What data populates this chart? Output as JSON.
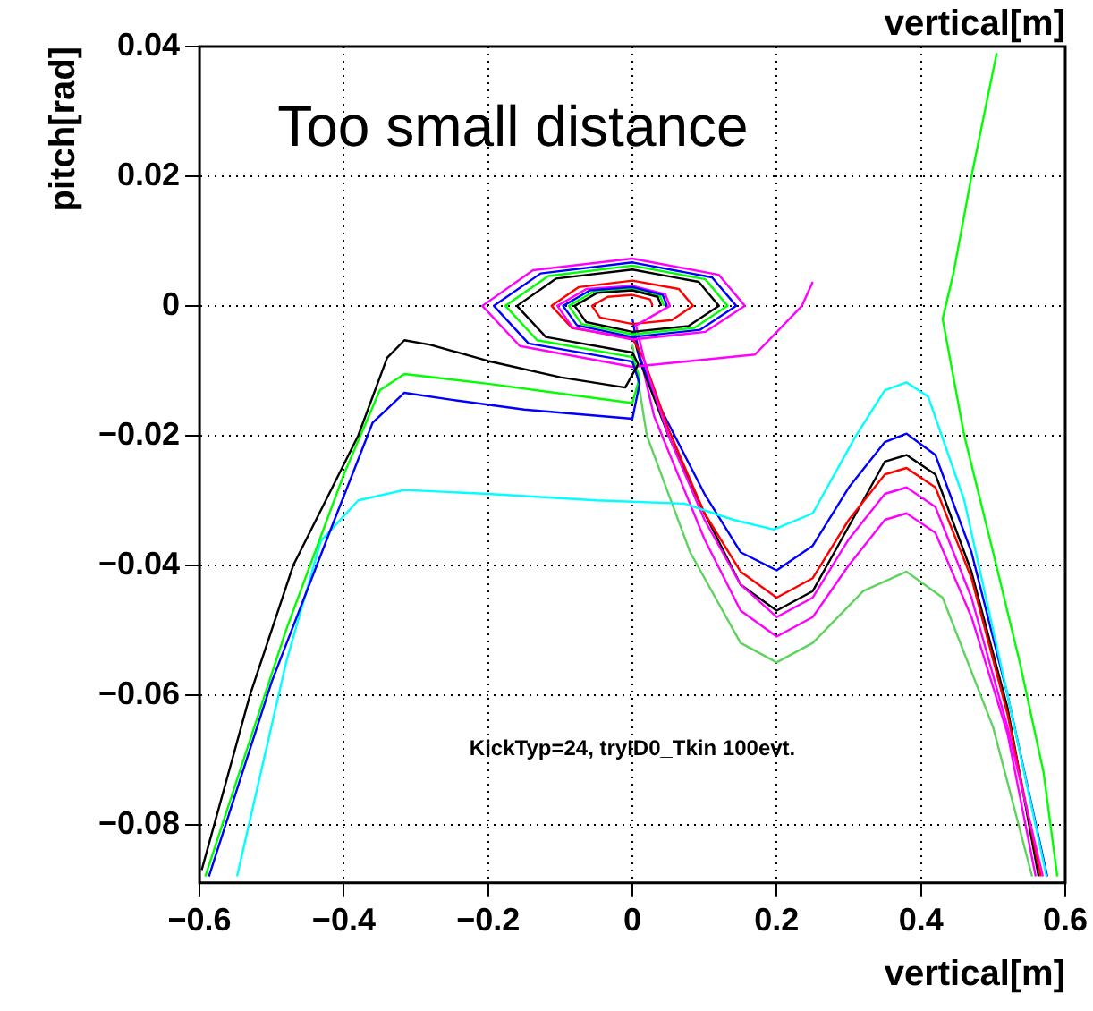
{
  "chart_data": {
    "type": "line",
    "title": "vertical[m]",
    "xlabel": "vertical[m]",
    "ylabel": "pitch[rad]",
    "annotations": [
      "Too small distance",
      "KickTyp=24, tryID0_Tkin 100evt."
    ],
    "xlim": [
      -0.6,
      0.6
    ],
    "ylim": [
      -0.089,
      0.04
    ],
    "xticks": [
      {
        "value": -0.6,
        "label": "−0.6"
      },
      {
        "value": -0.4,
        "label": "−0.4"
      },
      {
        "value": -0.2,
        "label": "−0.2"
      },
      0,
      0.2,
      0.4,
      0.6
    ],
    "yticks": [
      {
        "value": -0.08,
        "label": "−0.08"
      },
      {
        "value": -0.06,
        "label": "−0.06"
      },
      {
        "value": -0.04,
        "label": "−0.04"
      },
      {
        "value": -0.02,
        "label": "−0.02"
      },
      0,
      0.02,
      0.04
    ],
    "grid": true,
    "legend": false,
    "series": [
      {
        "color": "#000000",
        "x": [
          0.04,
          0.035,
          0,
          -0.049,
          -0.08,
          -0.064,
          0,
          0.078,
          0.12,
          0.092,
          0,
          -0.106,
          -0.16,
          -0.12,
          0,
          0.008,
          -0.01,
          -0.1,
          -0.2,
          -0.28,
          -0.316,
          -0.34,
          -0.38,
          -0.47,
          -0.53,
          -0.597
        ],
        "values": [
          0,
          0.0014,
          0.0024,
          0.002,
          0,
          -0.0025,
          -0.004,
          -0.0031,
          0,
          0.0037,
          0.0056,
          0.0042,
          0,
          -0.0048,
          -0.0072,
          -0.009,
          -0.0126,
          -0.011,
          -0.0085,
          -0.006,
          -0.0053,
          -0.008,
          -0.02,
          -0.04,
          -0.06,
          -0.087
        ]
      },
      {
        "color": "#0000ff",
        "x": [
          0.048,
          0.042,
          0,
          -0.0588,
          -0.096,
          -0.0768,
          0,
          0.0936,
          0.144,
          0.1104,
          0,
          -0.1272,
          -0.192,
          -0.144,
          0,
          0.01,
          0,
          -0.15,
          -0.25,
          -0.316,
          -0.36,
          -0.42,
          -0.5,
          -0.587
        ],
        "values": [
          0,
          0.0017,
          0.0029,
          0.0024,
          0,
          -0.003,
          -0.0048,
          -0.0037,
          0,
          0.0044,
          0.0067,
          0.005,
          0,
          -0.0058,
          -0.0086,
          -0.012,
          -0.0174,
          -0.016,
          -0.0145,
          -0.0134,
          -0.018,
          -0.035,
          -0.058,
          -0.088
        ]
      },
      {
        "color": "#00ff00",
        "x": [
          0.044,
          0.0385,
          0,
          -0.0539,
          -0.088,
          -0.0704,
          0,
          0.0858,
          0.132,
          0.1012,
          0,
          -0.1166,
          -0.176,
          -0.132,
          0,
          0.01,
          0,
          -0.1,
          -0.2,
          -0.316,
          -0.35,
          -0.4,
          -0.48,
          -0.592
        ],
        "values": [
          0,
          0.0015,
          0.0026,
          0.0022,
          0,
          -0.0028,
          -0.0044,
          -0.0034,
          0,
          0.0041,
          0.0062,
          0.0046,
          0,
          -0.0053,
          -0.0079,
          -0.011,
          -0.015,
          -0.0135,
          -0.012,
          -0.0105,
          -0.013,
          -0.026,
          -0.05,
          -0.088
        ]
      },
      {
        "color": "#00ffff",
        "x": [
          -0.548,
          -0.48,
          -0.432,
          -0.38,
          -0.316,
          -0.2,
          -0.05,
          0.072,
          0.14,
          0.196,
          0.25,
          0.31,
          0.35,
          0.38,
          0.41,
          0.46,
          0.52,
          0.574
        ],
        "values": [
          -0.088,
          -0.055,
          -0.0363,
          -0.03,
          -0.0284,
          -0.029,
          -0.03,
          -0.0305,
          -0.033,
          -0.0345,
          -0.032,
          -0.02,
          -0.013,
          -0.0118,
          -0.014,
          -0.03,
          -0.06,
          -0.088
        ]
      },
      {
        "color": "#ff00ff",
        "x": [
          0.569,
          0.52,
          0.47,
          0.42,
          0.38,
          0.35,
          0.3,
          0.25,
          0.2,
          0.15,
          0.1,
          0.05,
          0.02,
          0.005,
          0.052,
          0.0455,
          0,
          -0.0637,
          -0.104,
          -0.0832,
          0,
          0.1014,
          0.156,
          0.1196,
          0,
          -0.1378,
          -0.208,
          -0.156,
          0,
          0.17,
          0.235,
          0.25
        ],
        "values": [
          -0.088,
          -0.065,
          -0.045,
          -0.031,
          -0.028,
          -0.029,
          -0.036,
          -0.045,
          -0.048,
          -0.043,
          -0.033,
          -0.02,
          -0.01,
          -0.003,
          0,
          0.0018,
          0.0031,
          0.0026,
          0,
          -0.0033,
          -0.0052,
          -0.004,
          0,
          0.0048,
          0.0073,
          0.0055,
          0,
          -0.0062,
          -0.0094,
          -0.0075,
          0,
          0.0037
        ]
      },
      {
        "color": "#ff0000",
        "x": [
          0.028,
          0.0245,
          0,
          -0.0343,
          -0.056,
          -0.0448,
          0,
          0.0546,
          0.084,
          0.0644,
          0,
          -0.0742,
          -0.112,
          -0.084,
          0,
          0.015,
          0.05,
          0.1,
          0.15,
          0.2,
          0.25,
          0.3,
          0.35,
          0.38,
          0.42,
          0.47,
          0.52,
          0.566
        ],
        "values": [
          0,
          0.001,
          0.0017,
          0.0014,
          0,
          -0.0018,
          -0.0028,
          -0.0022,
          0,
          0.0026,
          0.0039,
          0.0029,
          0,
          -0.0034,
          -0.005,
          -0.008,
          -0.019,
          -0.032,
          -0.041,
          -0.045,
          -0.042,
          -0.033,
          -0.026,
          -0.025,
          -0.028,
          -0.042,
          -0.063,
          -0.088
        ]
      },
      {
        "color": "#0000ff",
        "x": [
          0,
          0.01,
          0.04,
          0.1,
          0.15,
          0.2,
          0.25,
          0.3,
          0.35,
          0.38,
          0.42,
          0.47,
          0.52,
          0.575
        ],
        "values": [
          -0.002,
          -0.008,
          -0.016,
          -0.029,
          -0.038,
          -0.0408,
          -0.037,
          -0.028,
          -0.021,
          -0.0197,
          -0.023,
          -0.038,
          -0.06,
          -0.088
        ]
      },
      {
        "color": "#000000",
        "x": [
          0,
          0.012,
          0.05,
          0.1,
          0.15,
          0.2,
          0.25,
          0.3,
          0.35,
          0.38,
          0.42,
          0.47,
          0.52,
          0.563
        ],
        "values": [
          -0.004,
          -0.009,
          -0.02,
          -0.032,
          -0.043,
          -0.047,
          -0.044,
          -0.034,
          -0.024,
          -0.023,
          -0.026,
          -0.041,
          -0.062,
          -0.088
        ]
      },
      {
        "color": "#ff00ff",
        "x": [
          0.005,
          0.03,
          0.1,
          0.15,
          0.2,
          0.25,
          0.3,
          0.35,
          0.38,
          0.42,
          0.47,
          0.52,
          0.559
        ],
        "values": [
          -0.005,
          -0.017,
          -0.036,
          -0.047,
          -0.051,
          -0.048,
          -0.04,
          -0.033,
          -0.032,
          -0.035,
          -0.048,
          -0.066,
          -0.088
        ]
      },
      {
        "color": "#5fd35f",
        "x": [
          0,
          0.02,
          0.08,
          0.15,
          0.2,
          0.25,
          0.32,
          0.38,
          0.43,
          0.5,
          0.554
        ],
        "values": [
          -0.006,
          -0.02,
          -0.038,
          -0.052,
          -0.055,
          -0.052,
          -0.044,
          -0.041,
          -0.045,
          -0.065,
          -0.088
        ]
      },
      {
        "color": "#00ff00",
        "x": [
          0.505,
          0.47,
          0.445,
          0.43,
          0.46,
          0.5,
          0.537,
          0.57,
          0.589
        ],
        "values": [
          0.039,
          0.02,
          0.005,
          -0.002,
          -0.02,
          -0.038,
          -0.055,
          -0.072,
          -0.088
        ]
      }
    ]
  }
}
